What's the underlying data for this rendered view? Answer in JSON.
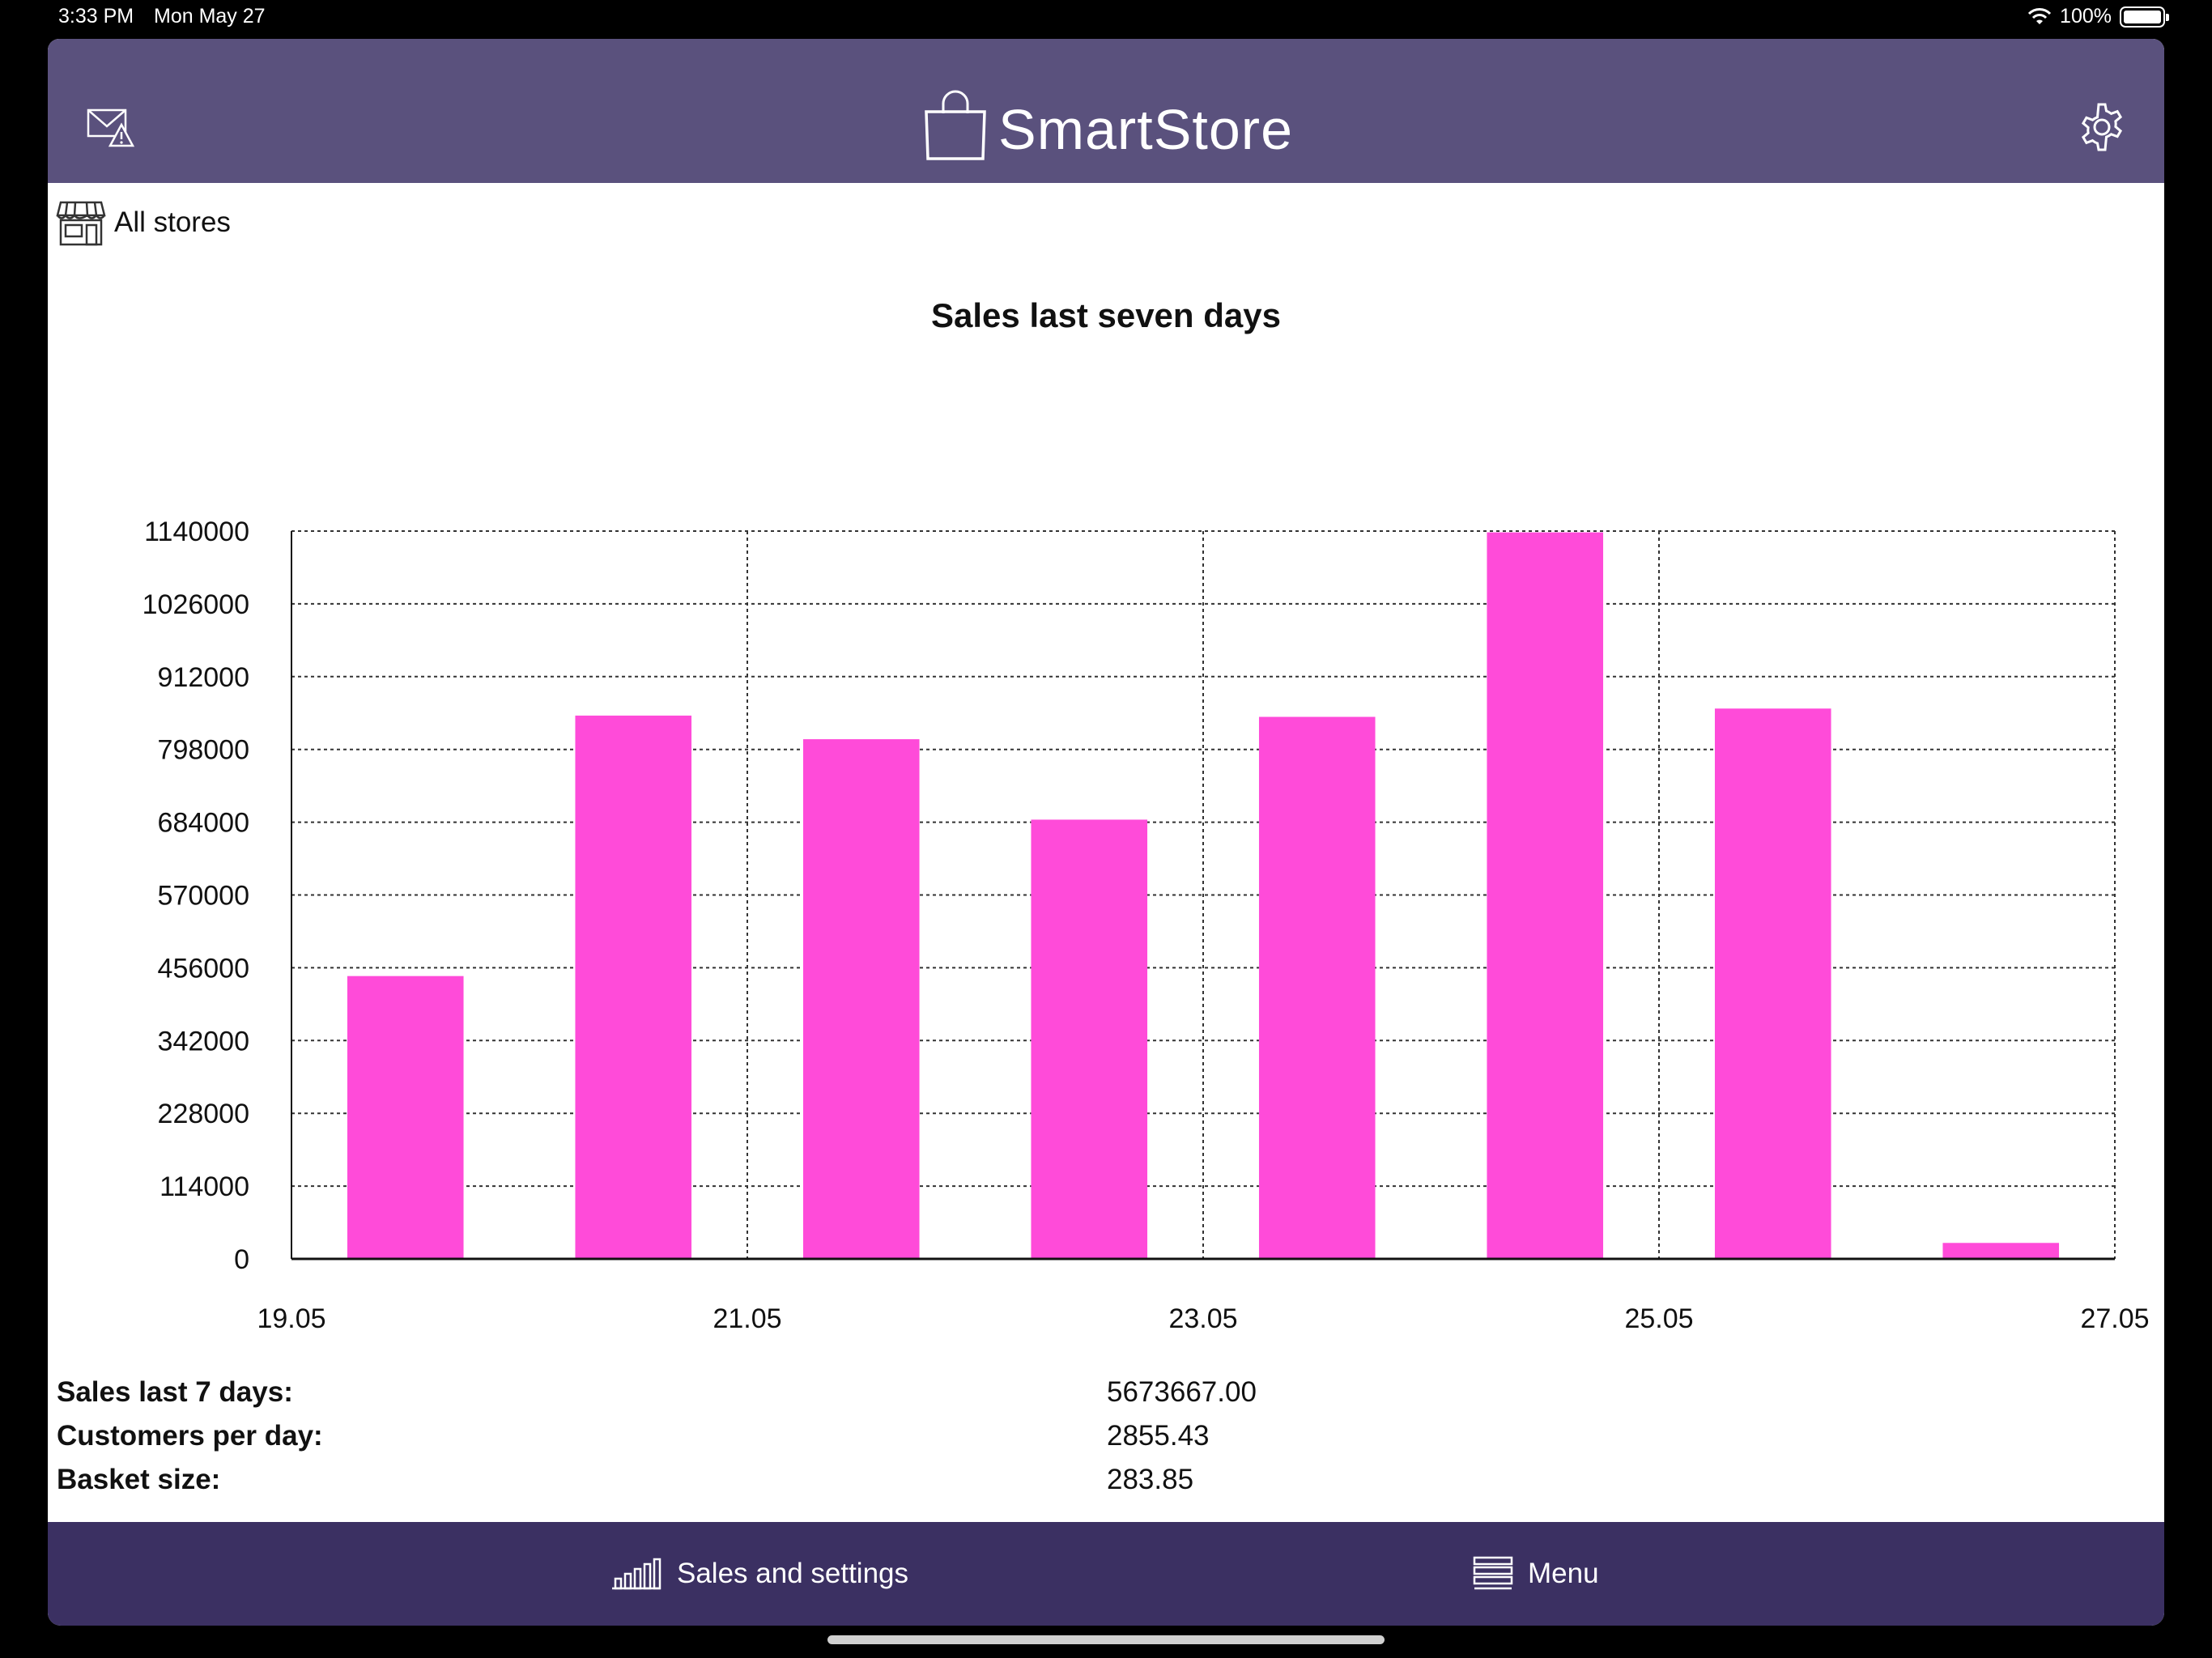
{
  "status_bar": {
    "time": "3:33 PM",
    "date": "Mon May 27",
    "battery": "100%"
  },
  "header": {
    "app_name": "SmartStore",
    "icons": [
      "mail-alert-icon",
      "shopping-bag-icon",
      "gear-icon"
    ]
  },
  "store": {
    "label": "All stores",
    "icon": "storefront-icon"
  },
  "colors": {
    "header_bg": "#5a517d",
    "tabbar_bg": "#3b3062",
    "bar": "#ff4bd9"
  },
  "chart_data": {
    "type": "bar",
    "title": "Sales last seven days",
    "x_range": [
      "19.05",
      "27.05"
    ],
    "x_ticks": [
      "19.05",
      "21.05",
      "23.05",
      "25.05",
      "27.05"
    ],
    "bars": [
      {
        "date": "19.05",
        "value": 443000
      },
      {
        "date": "20.05",
        "value": 851000
      },
      {
        "date": "21.05",
        "value": 814000
      },
      {
        "date": "22.05",
        "value": 688000
      },
      {
        "date": "23.05",
        "value": 849000
      },
      {
        "date": "24.05",
        "value": 1138000
      },
      {
        "date": "25.05",
        "value": 862000
      },
      {
        "date": "26.05",
        "value": 25000
      }
    ],
    "ylim": [
      0,
      1140000
    ],
    "y_ticks": [
      0,
      114000,
      228000,
      342000,
      456000,
      570000,
      684000,
      798000,
      912000,
      1026000,
      1140000
    ],
    "grid": true,
    "xlabel": "",
    "ylabel": ""
  },
  "stats": [
    {
      "label": "Sales last 7 days:",
      "value": "5673667.00"
    },
    {
      "label": "Customers per day:",
      "value": "2855.43"
    },
    {
      "label": "Basket size:",
      "value": "283.85"
    }
  ],
  "tabs": [
    {
      "label": "Sales and settings",
      "icon": "bar-chart-icon"
    },
    {
      "label": "Menu",
      "icon": "menu-icon"
    }
  ]
}
